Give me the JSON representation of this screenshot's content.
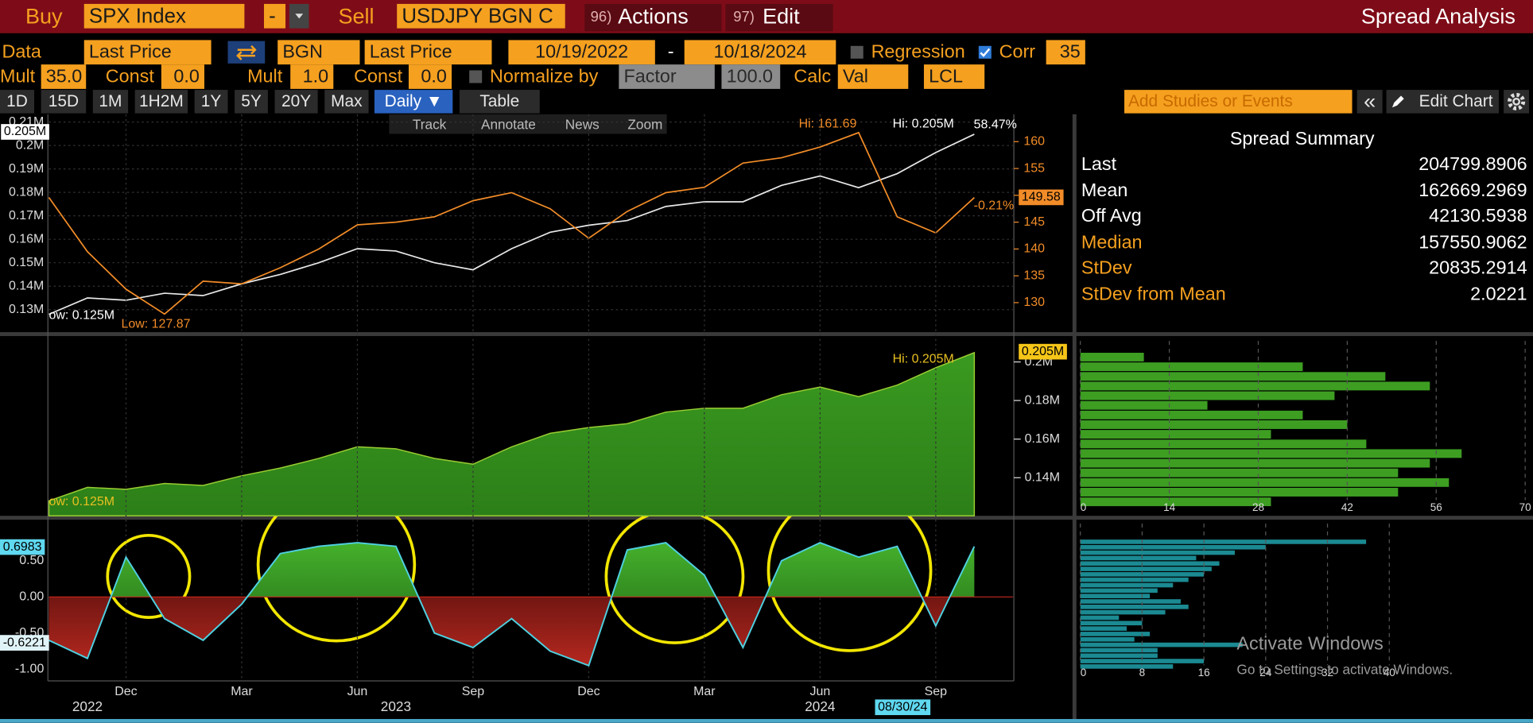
{
  "toolbar": {
    "buy_label": "Buy",
    "buy_ticker": "SPX Index",
    "operator": "-",
    "sell_label": "Sell",
    "sell_ticker": "USDJPY BGN C",
    "actions_key": "96)",
    "actions": "Actions",
    "edit_key": "97)",
    "edit": "Edit",
    "title": "Spread Analysis"
  },
  "settings": {
    "data_label": "Data",
    "buy_field": "Last Price",
    "sell_source": "BGN",
    "sell_field": "Last Price",
    "start_date": "10/19/2022",
    "date_separator": "-",
    "end_date": "10/18/2024",
    "regression": "Regression",
    "corr": "Corr",
    "corr_window": "35",
    "buy_mult_label": "Mult",
    "buy_mult": "35.0",
    "buy_const_label": "Const",
    "buy_const": "0.0",
    "sell_mult_label": "Mult",
    "sell_mult": "1.0",
    "sell_const_label": "Const",
    "sell_const": "0.0",
    "normalize": "Normalize by",
    "normalize_by": "Factor",
    "factor": "100.0",
    "calc": "Calc",
    "calc_mode": "Val",
    "currency": "LCL"
  },
  "periods": [
    "1D",
    "15D",
    "1M",
    "1H2M",
    "1Y",
    "5Y",
    "20Y",
    "Max"
  ],
  "frequency": "Daily ▼",
  "table": "Table",
  "studies_placeholder": "Add Studies or Events",
  "collapse": "«",
  "edit_chart": "Edit Chart",
  "chart_tools": [
    "Track",
    "Annotate",
    "News",
    "Zoom"
  ],
  "summary": {
    "title": "Spread Summary",
    "rows": [
      {
        "label": "Last",
        "value": "204799.8906"
      },
      {
        "label": "Mean",
        "value": "162669.2969"
      },
      {
        "label": "Off Avg",
        "value": "42130.5938"
      },
      {
        "label": "Median",
        "value": "157550.9062"
      },
      {
        "label": "StDev",
        "value": "20835.2914"
      },
      {
        "label": "StDev from Mean",
        "value": "2.0221"
      }
    ]
  },
  "chart_data": [
    {
      "type": "line",
      "x": [
        "2022-10",
        "2022-11",
        "2022-12",
        "2023-01",
        "2023-02",
        "2023-03",
        "2023-04",
        "2023-05",
        "2023-06",
        "2023-07",
        "2023-08",
        "2023-09",
        "2023-10",
        "2023-11",
        "2023-12",
        "2024-01",
        "2024-02",
        "2024-03",
        "2024-04",
        "2024-05",
        "2024-06",
        "2024-07",
        "2024-08",
        "2024-09",
        "2024-10"
      ],
      "xlim": [
        "2022-10",
        "2024-11"
      ],
      "series": [
        {
          "color": "#e8e8e8",
          "values": [
            128000,
            135000,
            134000,
            137000,
            136000,
            141000,
            145000,
            150000,
            156000,
            155000,
            150000,
            147000,
            156000,
            163000,
            166000,
            168000,
            174000,
            176000,
            176000,
            183000,
            187000,
            182000,
            188000,
            197000,
            204800
          ]
        },
        {
          "color": "#f28c28",
          "axis": "y2",
          "values": [
            149.6,
            139.5,
            132.5,
            127.87,
            134,
            133.5,
            136.5,
            140,
            144.5,
            145,
            146,
            149,
            150.5,
            147.5,
            142,
            147,
            150.5,
            151.5,
            156,
            157,
            159,
            161.69,
            146,
            143,
            149.58
          ]
        }
      ],
      "ylim": [
        120400,
        213300
      ],
      "yticks": [
        {
          "value": 130000,
          "label": "0.13M"
        },
        {
          "value": 140000,
          "label": "0.14M"
        },
        {
          "value": 150000,
          "label": "0.15M"
        },
        {
          "value": 160000,
          "label": "0.16M"
        },
        {
          "value": 170000,
          "label": "0.17M"
        },
        {
          "value": 180000,
          "label": "0.18M"
        },
        {
          "value": 190000,
          "label": "0.19M"
        },
        {
          "value": 200000,
          "label": "0.2M"
        },
        {
          "value": 210000,
          "label": "0.21M"
        }
      ],
      "y2lim": [
        124.5,
        165.1
      ],
      "y2ticks": [
        130,
        135,
        140,
        145,
        150,
        155,
        160
      ],
      "grid": true,
      "annotations": {
        "hi_y2": "Hi: 161.69",
        "hi": "Hi: 0.205M",
        "change": "58.47%",
        "low": "ow: 0.125M",
        "low_y2": "Low: 127.87",
        "last": "0.205M",
        "last_y2": "149.58",
        "change_y2": "-0.21%"
      }
    },
    {
      "type": "area",
      "x": [
        "2022-10",
        "2022-11",
        "2022-12",
        "2023-01",
        "2023-02",
        "2023-03",
        "2023-04",
        "2023-05",
        "2023-06",
        "2023-07",
        "2023-08",
        "2023-09",
        "2023-10",
        "2023-11",
        "2023-12",
        "2024-01",
        "2024-02",
        "2024-03",
        "2024-04",
        "2024-05",
        "2024-06",
        "2024-07",
        "2024-08",
        "2024-09",
        "2024-10"
      ],
      "xlim": [
        "2022-10",
        "2024-11"
      ],
      "values": [
        128000,
        135000,
        134000,
        137000,
        136000,
        141000,
        145000,
        150000,
        156000,
        155000,
        150000,
        147000,
        156000,
        163000,
        166000,
        168000,
        174000,
        176000,
        176000,
        183000,
        187000,
        182000,
        188000,
        197000,
        204800
      ],
      "color": "#9acd32",
      "ylim": [
        120250,
        212900
      ],
      "yticks": [
        {
          "value": 140000,
          "label": "0.14M"
        },
        {
          "value": 160000,
          "label": "0.16M"
        },
        {
          "value": 180000,
          "label": "0.18M"
        },
        {
          "value": 200000,
          "label": "0.2M"
        }
      ],
      "annotations": {
        "hi": "Hi: 0.205M",
        "low": "ow: 0.125M",
        "last": "0.205M"
      }
    },
    {
      "type": "histogram",
      "bins": [
        125000,
        130000,
        135000,
        140000,
        145000,
        150000,
        155000,
        160000,
        165000,
        170000,
        175000,
        180000,
        185000,
        190000,
        195000,
        200000,
        205000
      ],
      "values": [
        30,
        50,
        58,
        50,
        55,
        60,
        45,
        30,
        42,
        35,
        20,
        40,
        55,
        48,
        35,
        10
      ],
      "color": "#3d9e22",
      "ylim": [
        120250,
        212900
      ],
      "xlim": [
        0,
        70
      ],
      "xticks": [
        0,
        14,
        28,
        42,
        56,
        70
      ]
    },
    {
      "type": "area",
      "x": [
        "2022-10",
        "2022-11",
        "2022-12",
        "2023-01",
        "2023-02",
        "2023-03",
        "2023-04",
        "2023-05",
        "2023-06",
        "2023-07",
        "2023-08",
        "2023-09",
        "2023-10",
        "2023-11",
        "2023-12",
        "2024-01",
        "2024-02",
        "2024-03",
        "2024-04",
        "2024-05",
        "2024-06",
        "2024-07",
        "2024-08",
        "2024-09",
        "2024-10"
      ],
      "xlim": [
        "2022-10",
        "2024-11"
      ],
      "values": [
        -0.6,
        -0.85,
        0.55,
        -0.3,
        -0.6,
        -0.1,
        0.6,
        0.7,
        0.75,
        0.7,
        -0.5,
        -0.7,
        -0.3,
        -0.75,
        -0.95,
        0.65,
        0.75,
        0.3,
        -0.7,
        0.5,
        0.75,
        0.55,
        0.7,
        -0.4,
        0.6983
      ],
      "color": "#4fd0e0",
      "pos_color": "#3fa329",
      "neg_color": "#9a1c1c",
      "ylim": [
        -1.162,
        1.068
      ],
      "yticks": [
        {
          "value": 0.5,
          "label": "0.50"
        },
        {
          "value": 0,
          "label": "0.00"
        },
        {
          "value": -0.5,
          "label": "-0.50"
        },
        {
          "value": -1,
          "label": "-1.00"
        }
      ],
      "xticks": [
        {
          "value": "2022-12",
          "label": "Dec"
        },
        {
          "value": "2023-03",
          "label": "Mar"
        },
        {
          "value": "2023-06",
          "label": "Jun"
        },
        {
          "value": "2023-09",
          "label": "Sep"
        },
        {
          "value": "2023-12",
          "label": "Dec"
        },
        {
          "value": "2024-03",
          "label": "Mar"
        },
        {
          "value": "2024-06",
          "label": "Jun"
        },
        {
          "value": "2024-09",
          "label": "Sep"
        }
      ],
      "xticks_major": [
        {
          "value": "2022-11",
          "label": "2022"
        },
        {
          "value": "2023-07",
          "label": "2023"
        },
        {
          "value": "2024-06",
          "label": "2024"
        }
      ],
      "grid": true,
      "annotations": {
        "last": "0.6983",
        "marker": "-0.6221",
        "cursor": "08/30/24"
      }
    },
    {
      "type": "histogram",
      "bins": [
        -1,
        -0.925,
        -0.85,
        -0.775,
        -0.7,
        -0.625,
        -0.55,
        -0.475,
        -0.4,
        -0.325,
        -0.25,
        -0.175,
        -0.1,
        -0.025,
        0.05,
        0.125,
        0.2,
        0.275,
        0.35,
        0.425,
        0.5,
        0.575,
        0.65,
        0.725,
        0.8
      ],
      "values": [
        12,
        16,
        10,
        10,
        21,
        7,
        9,
        6,
        8,
        5,
        11,
        14,
        13,
        9,
        10,
        12,
        14,
        16,
        17,
        18,
        15,
        20,
        24,
        37
      ],
      "color": "#1b8a92",
      "ylim": [
        -1.162,
        1.068
      ],
      "xlim": [
        0,
        40
      ],
      "xticks": [
        0,
        8,
        16,
        24,
        32,
        40
      ]
    }
  ],
  "watermark": {
    "title": "Activate Windows",
    "text": "Go to Settings to activate Windows."
  }
}
